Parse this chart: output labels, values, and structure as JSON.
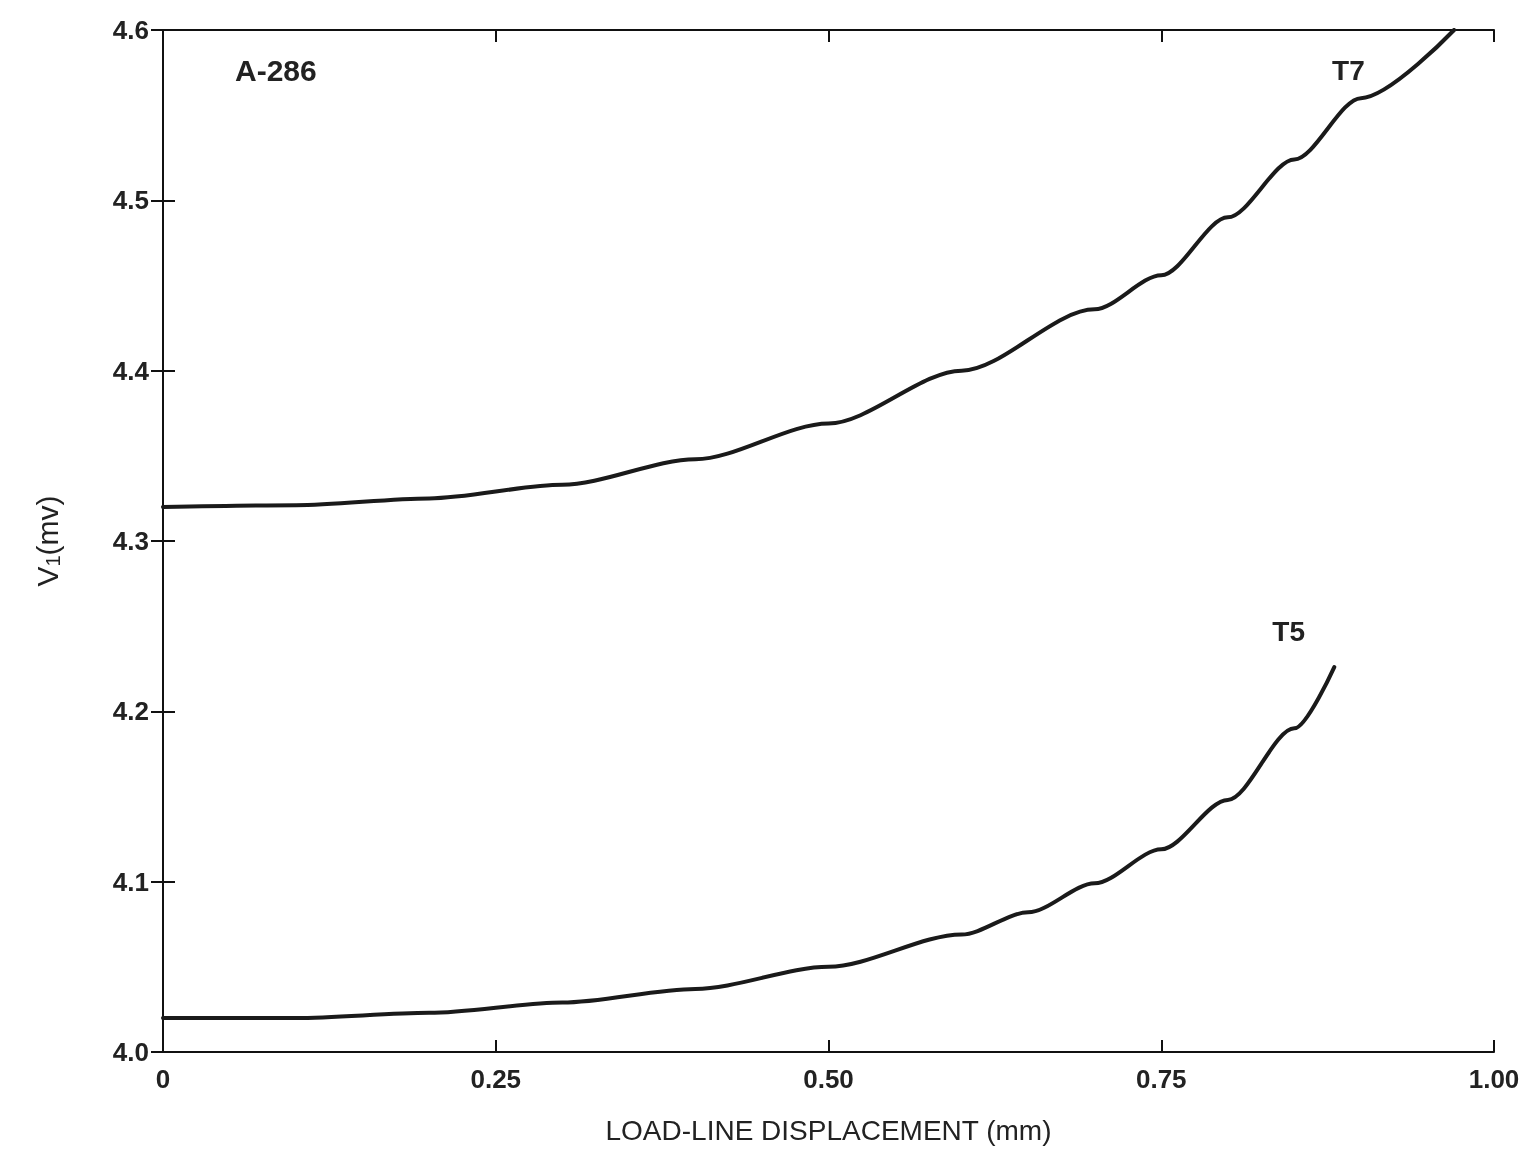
{
  "chart_data": {
    "type": "line",
    "xlabel": "LOAD-LINE DISPLACEMENT (mm)",
    "ylabel": "V$_{1}$(mv)",
    "annotations": [
      "A-286"
    ],
    "xlim": [
      0,
      1.0
    ],
    "xticks": [
      {
        "value": 0,
        "label": "0"
      },
      0.25,
      {
        "value": 0.5,
        "label": "0.50"
      },
      0.75,
      {
        "value": 1.0,
        "label": "1.00"
      }
    ],
    "ylim": [
      4.0,
      4.6
    ],
    "yticks": [
      {
        "value": 4.0,
        "label": "4.0"
      },
      4.1,
      4.2,
      4.3,
      4.4,
      4.5,
      4.6
    ],
    "grid": false,
    "legend": false,
    "marker": "none",
    "line_style": "solid",
    "series": [
      {
        "name": "T7",
        "color": "#1a1a1a",
        "x": [
          0,
          0.1,
          0.2,
          0.3,
          0.4,
          0.5,
          0.6,
          0.7,
          0.75,
          0.8,
          0.85,
          0.9,
          0.97
        ],
        "values": [
          4.32,
          4.321,
          4.325,
          4.333,
          4.348,
          4.369,
          4.4,
          4.436,
          4.456,
          4.49,
          4.524,
          4.56,
          4.6
        ]
      },
      {
        "name": "T5",
        "color": "#1a1a1a",
        "x": [
          0,
          0.1,
          0.2,
          0.3,
          0.4,
          0.5,
          0.6,
          0.65,
          0.7,
          0.75,
          0.8,
          0.85,
          0.88
        ],
        "values": [
          4.02,
          4.02,
          4.023,
          4.029,
          4.037,
          4.05,
          4.069,
          4.082,
          4.099,
          4.119,
          4.148,
          4.19,
          4.226
        ]
      }
    ]
  }
}
